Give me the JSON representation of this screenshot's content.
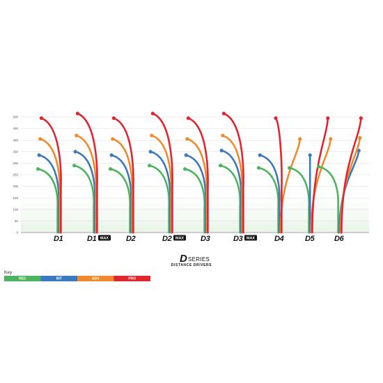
{
  "chart_data": {
    "type": "line",
    "title": "",
    "xlabel": "",
    "ylabel": "",
    "ylim": [
      0,
      500
    ],
    "yticks": [
      0,
      50,
      100,
      150,
      200,
      250,
      300,
      350,
      400,
      450,
      500
    ],
    "grid": true,
    "categories": [
      {
        "name": "D1",
        "badge": ""
      },
      {
        "name": "D1",
        "badge": "MAX"
      },
      {
        "name": "D2",
        "badge": ""
      },
      {
        "name": "D2",
        "badge": "MAX"
      },
      {
        "name": "D3",
        "badge": ""
      },
      {
        "name": "D3",
        "badge": "MAX"
      },
      {
        "name": "D4",
        "badge": ""
      },
      {
        "name": "D5",
        "badge": ""
      },
      {
        "name": "D6",
        "badge": ""
      }
    ],
    "series": [
      {
        "name": "REC",
        "color": "#4cb35f",
        "values": [
          275,
          290,
          275,
          290,
          275,
          290,
          280,
          280,
          285
        ],
        "lateral": [
          -1,
          -1,
          -1,
          -1,
          -1,
          -1,
          -1,
          -1,
          -1
        ]
      },
      {
        "name": "INT",
        "color": "#3a78c0",
        "values": [
          335,
          350,
          335,
          350,
          335,
          355,
          335,
          335,
          355
        ],
        "lateral": [
          -1,
          -1,
          -1,
          -1,
          -1,
          -1,
          -1,
          0,
          1
        ]
      },
      {
        "name": "ADV",
        "color": "#ef8a2c",
        "values": [
          405,
          420,
          405,
          420,
          405,
          420,
          405,
          405,
          410
        ],
        "lateral": [
          -1,
          -1,
          -1,
          -1,
          -1,
          -1,
          1,
          1,
          1
        ]
      },
      {
        "name": "PRO",
        "color": "#e0252e",
        "values": [
          495,
          515,
          495,
          515,
          495,
          515,
          495,
          495,
          495
        ],
        "lateral": [
          -1,
          -1,
          -1,
          -1,
          -1,
          -1,
          -0.3,
          0.8,
          1
        ]
      }
    ],
    "legend": {
      "title": "Key",
      "position": "bottom-left"
    }
  },
  "series_title": {
    "logo": "D",
    "word": "SERIES",
    "subtitle": "DISTANCE DRIVERS"
  }
}
